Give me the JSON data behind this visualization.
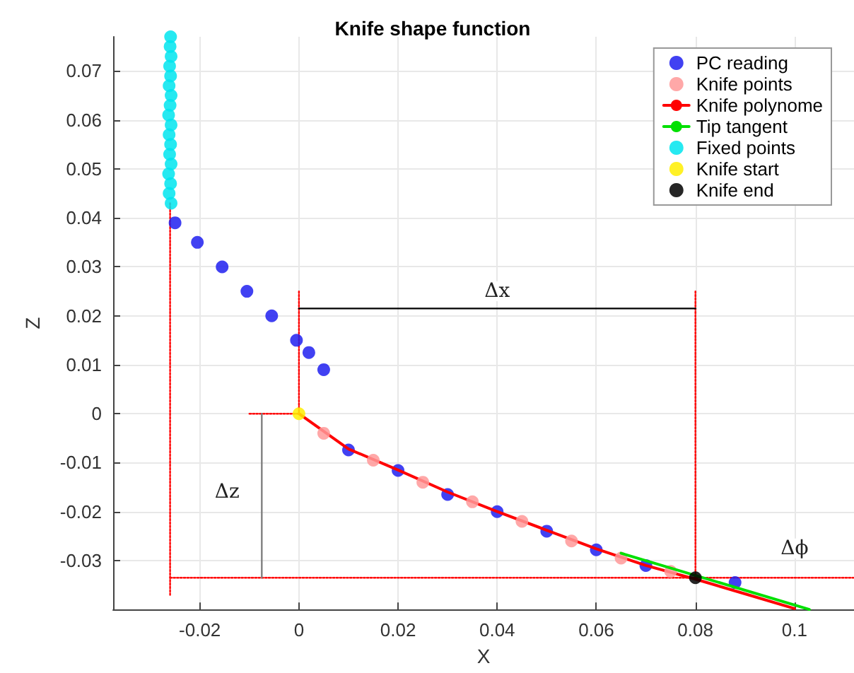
{
  "chart_data": {
    "type": "scatter",
    "title": "Knife shape function",
    "xlabel": "X",
    "ylabel": "Z",
    "xlim": [
      -0.0375,
      0.112
    ],
    "ylim": [
      -0.04,
      0.077
    ],
    "xticks": [
      -0.02,
      0,
      0.02,
      0.04,
      0.06,
      0.08,
      0.1
    ],
    "yticks": [
      -0.03,
      -0.02,
      -0.01,
      0,
      0.01,
      0.02,
      0.03,
      0.04,
      0.05,
      0.06,
      0.07
    ],
    "grid": true,
    "legend": "top right",
    "series": [
      {
        "type": "line",
        "color": "#ff0000",
        "line_style": "dotted",
        "marker": "none",
        "x": [
          -0.026,
          -0.026
        ],
        "values": [
          0.043,
          -0.037
        ]
      },
      {
        "type": "line",
        "color": "#ff0000",
        "line_style": "dotted",
        "marker": "none",
        "x": [
          -0.026,
          0.112
        ],
        "values": [
          -0.0335,
          -0.0335
        ]
      },
      {
        "type": "line",
        "color": "#ff0000",
        "line_style": "dotted",
        "marker": "none",
        "x": [
          0,
          0
        ],
        "values": [
          0.025,
          0
        ]
      },
      {
        "type": "line",
        "color": "#ff0000",
        "line_style": "dotted",
        "marker": "none",
        "x": [
          -0.01,
          0
        ],
        "values": [
          0,
          0
        ]
      },
      {
        "type": "line",
        "color": "#ff0000",
        "line_style": "dotted",
        "marker": "none",
        "x": [
          0.08,
          0.08
        ],
        "values": [
          0.025,
          -0.0335
        ]
      },
      {
        "type": "line",
        "color": "#000000",
        "line_style": "solid",
        "marker": "none",
        "x": [
          0,
          0.08
        ],
        "values": [
          0.0215,
          0.0215
        ]
      },
      {
        "type": "line",
        "color": "#808080",
        "line_style": "solid",
        "marker": "none",
        "x": [
          -0.0075,
          -0.0075
        ],
        "values": [
          0,
          -0.0335
        ]
      },
      {
        "name": "PC reading",
        "color": "#2020f0",
        "marker": "circle",
        "x": [
          -0.025,
          -0.0205,
          -0.0155,
          -0.0105,
          -0.0055,
          -0.0005,
          0.002,
          0.005,
          0.01,
          0.02,
          0.03,
          0.04,
          0.05,
          0.06,
          0.07,
          0.088
        ],
        "values": [
          0.039,
          0.035,
          0.03,
          0.025,
          0.02,
          0.015,
          0.0125,
          0.009,
          -0.0074,
          -0.0116,
          -0.0165,
          -0.02,
          -0.024,
          -0.0278,
          -0.031,
          -0.0345
        ]
      },
      {
        "name": "Knife points",
        "color": "#ff9999",
        "marker": "circle",
        "x": [
          0.005,
          0.015,
          0.025,
          0.035,
          0.045,
          0.055,
          0.065,
          0.075
        ],
        "values": [
          -0.004,
          -0.0095,
          -0.014,
          -0.018,
          -0.022,
          -0.026,
          -0.0295,
          -0.0322
        ]
      },
      {
        "name": "Knife polynome",
        "type": "line",
        "color": "#ff0000",
        "line_style": "solid",
        "marker": "none",
        "x": [
          0,
          0.01,
          0.02,
          0.03,
          0.04,
          0.05,
          0.06,
          0.07,
          0.08,
          0.09,
          0.1
        ],
        "values": [
          0,
          -0.0072,
          -0.0115,
          -0.016,
          -0.02,
          -0.0238,
          -0.0276,
          -0.031,
          -0.0338,
          -0.0368,
          -0.0398
        ]
      },
      {
        "name": "Tip tangent",
        "type": "line",
        "color": "#00e000",
        "line_style": "solid",
        "marker": "none",
        "x": [
          0.065,
          0.103
        ],
        "values": [
          -0.0285,
          -0.04
        ]
      },
      {
        "name": "Fixed points",
        "color": "#00e5ee",
        "marker": "circle",
        "x": [
          -0.0258,
          -0.0262,
          -0.0259,
          -0.0263,
          -0.0258,
          -0.0261,
          -0.0259,
          -0.0262,
          -0.0258,
          -0.0263,
          -0.026,
          -0.0258,
          -0.0262,
          -0.0259,
          -0.0261,
          -0.0258,
          -0.026,
          -0.0259
        ],
        "values": [
          0.043,
          0.045,
          0.047,
          0.049,
          0.051,
          0.053,
          0.055,
          0.057,
          0.059,
          0.061,
          0.063,
          0.065,
          0.067,
          0.069,
          0.071,
          0.073,
          0.075,
          0.077
        ]
      },
      {
        "name": "Knife start",
        "color": "#ffee00",
        "marker": "circle",
        "x": [
          0
        ],
        "values": [
          0
        ]
      },
      {
        "name": "Knife end",
        "color": "#000000",
        "marker": "circle",
        "x": [
          0.08
        ],
        "values": [
          -0.0335
        ]
      }
    ],
    "annotations": [
      {
        "text": "Δx",
        "x": 0.04,
        "y": 0.025
      },
      {
        "text": "Δz",
        "x": -0.0145,
        "y": -0.016
      },
      {
        "text": "Δϕ",
        "x": 0.1,
        "y": -0.0275
      }
    ]
  }
}
